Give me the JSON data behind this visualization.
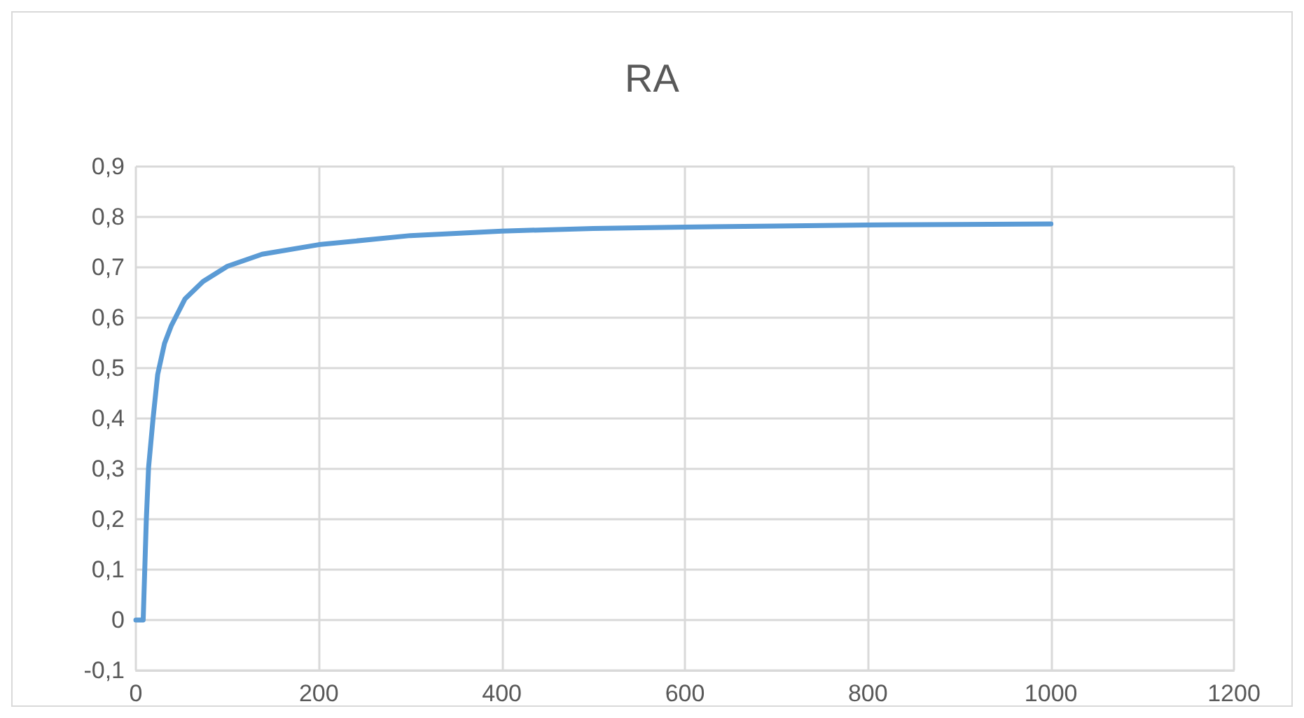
{
  "chart_data": {
    "type": "line",
    "title": "RA",
    "x": [
      0,
      8,
      11.4,
      13.9,
      18.8,
      23.8,
      31.3,
      38.7,
      53.6,
      73.4,
      100,
      138,
      200,
      300,
      400,
      500,
      600,
      700,
      800,
      900,
      1000
    ],
    "series": [
      {
        "color": "#5b9bd5",
        "values": [
          0,
          0,
          0.198,
          0.303,
          0.4,
          0.487,
          0.549,
          0.584,
          0.637,
          0.672,
          0.702,
          0.726,
          0.745,
          0.763,
          0.772,
          0.777,
          0.78,
          0.782,
          0.784,
          0.785,
          0.786
        ]
      }
    ],
    "xlim": [
      0,
      1200
    ],
    "xticks": [
      0,
      200,
      400,
      600,
      800,
      1000,
      1200
    ],
    "ylim": [
      -0.1,
      0.9
    ],
    "yticks": [
      {
        "value": -0.1,
        "label": "-0,1"
      },
      {
        "value": 0,
        "label": "0"
      },
      {
        "value": 0.1,
        "label": "0,1"
      },
      {
        "value": 0.2,
        "label": "0,2"
      },
      {
        "value": 0.3,
        "label": "0,3"
      },
      {
        "value": 0.4,
        "label": "0,4"
      },
      {
        "value": 0.5,
        "label": "0,5"
      },
      {
        "value": 0.6,
        "label": "0,6"
      },
      {
        "value": 0.7,
        "label": "0,7"
      },
      {
        "value": 0.8,
        "label": "0,8"
      },
      {
        "value": 0.9,
        "label": "0,9"
      }
    ],
    "grid": true,
    "marker": "none",
    "line_style": "solid"
  }
}
